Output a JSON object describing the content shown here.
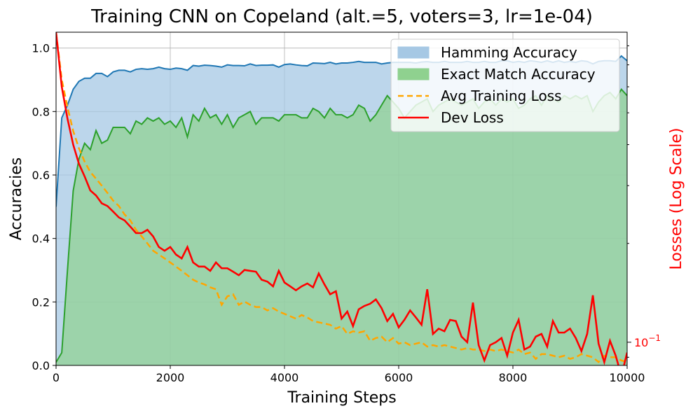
{
  "chart_data": {
    "type": "line",
    "title": "Training CNN on Copeland (alt.=5, voters=3, lr=1e-04)",
    "xlabel": "Training Steps",
    "ylabel": "Accuracies",
    "ylabel_right": "Losses (Log Scale)",
    "xlim": [
      0,
      10000
    ],
    "ylim": [
      0,
      1.05
    ],
    "ylim_right_log": [
      0.085,
      0.88
    ],
    "x_ticks": [
      0,
      2000,
      4000,
      6000,
      8000,
      10000
    ],
    "x_tick_labels": [
      "0",
      "2000",
      "4000",
      "6000",
      "8000",
      "10000"
    ],
    "y_ticks": [
      0.0,
      0.2,
      0.4,
      0.6,
      0.8,
      1.0
    ],
    "y_tick_labels": [
      "0.0",
      "0.2",
      "0.4",
      "0.6",
      "0.8",
      "1.0"
    ],
    "y_right_tick_labels": [
      {
        "base": "10",
        "exp": "−1",
        "value": 0.1
      }
    ],
    "grid": true,
    "legend_position": "top-right",
    "colors": {
      "hamming_line": "#1f77b4",
      "hamming_fill": "#a6c8e4",
      "exact_line": "#2ca02c",
      "exact_fill": "#8fd18f",
      "train_loss": "#ffa500",
      "dev_loss": "#ff0000",
      "right_axis": "#ff0000"
    },
    "x": [
      0,
      100,
      200,
      300,
      400,
      500,
      600,
      700,
      800,
      900,
      1000,
      1100,
      1200,
      1300,
      1400,
      1500,
      1600,
      1700,
      1800,
      1900,
      2000,
      2100,
      2200,
      2300,
      2400,
      2500,
      2600,
      2700,
      2800,
      2900,
      3000,
      3100,
      3200,
      3300,
      3400,
      3500,
      3600,
      3700,
      3800,
      3900,
      4000,
      4100,
      4200,
      4300,
      4400,
      4500,
      4600,
      4700,
      4800,
      4900,
      5000,
      5100,
      5200,
      5300,
      5400,
      5500,
      5600,
      5700,
      5800,
      5900,
      6000,
      6100,
      6200,
      6300,
      6400,
      6500,
      6600,
      6700,
      6800,
      6900,
      7000,
      7100,
      7200,
      7300,
      7400,
      7500,
      7600,
      7700,
      7800,
      7900,
      8000,
      8100,
      8200,
      8300,
      8400,
      8500,
      8600,
      8700,
      8800,
      8900,
      9000,
      9100,
      9200,
      9300,
      9400,
      9500,
      9600,
      9700,
      9800,
      9900,
      10000
    ],
    "series": [
      {
        "name": "Hamming Accuracy",
        "style": "area",
        "values": [
          0.5,
          0.78,
          0.82,
          0.87,
          0.895,
          0.905,
          0.905,
          0.92,
          0.92,
          0.91,
          0.925,
          0.93,
          0.93,
          0.925,
          0.933,
          0.935,
          0.933,
          0.935,
          0.94,
          0.935,
          0.933,
          0.937,
          0.935,
          0.93,
          0.945,
          0.943,
          0.946,
          0.945,
          0.943,
          0.94,
          0.947,
          0.945,
          0.945,
          0.944,
          0.95,
          0.945,
          0.946,
          0.946,
          0.947,
          0.94,
          0.948,
          0.95,
          0.947,
          0.945,
          0.944,
          0.953,
          0.952,
          0.951,
          0.955,
          0.95,
          0.953,
          0.953,
          0.955,
          0.958,
          0.955,
          0.955,
          0.955,
          0.95,
          0.953,
          0.955,
          0.955,
          0.955,
          0.955,
          0.953,
          0.956,
          0.957,
          0.955,
          0.955,
          0.958,
          0.955,
          0.955,
          0.955,
          0.958,
          0.955,
          0.955,
          0.958,
          0.955,
          0.955,
          0.96,
          0.96,
          0.955,
          0.958,
          0.955,
          0.96,
          0.958,
          0.955,
          0.96,
          0.955,
          0.96,
          0.955,
          0.958,
          0.955,
          0.96,
          0.958,
          0.95,
          0.958,
          0.96,
          0.96,
          0.958,
          0.975,
          0.96
        ]
      },
      {
        "name": "Exact Match Accuracy",
        "style": "area",
        "values": [
          0.01,
          0.04,
          0.3,
          0.55,
          0.65,
          0.7,
          0.68,
          0.74,
          0.7,
          0.71,
          0.75,
          0.75,
          0.75,
          0.73,
          0.77,
          0.76,
          0.78,
          0.77,
          0.78,
          0.76,
          0.77,
          0.75,
          0.78,
          0.72,
          0.79,
          0.77,
          0.81,
          0.78,
          0.79,
          0.76,
          0.79,
          0.75,
          0.78,
          0.79,
          0.8,
          0.76,
          0.78,
          0.78,
          0.78,
          0.77,
          0.79,
          0.79,
          0.79,
          0.78,
          0.78,
          0.81,
          0.8,
          0.78,
          0.81,
          0.79,
          0.79,
          0.78,
          0.79,
          0.82,
          0.81,
          0.77,
          0.79,
          0.82,
          0.85,
          0.83,
          0.81,
          0.78,
          0.8,
          0.82,
          0.83,
          0.84,
          0.8,
          0.82,
          0.83,
          0.84,
          0.83,
          0.82,
          0.83,
          0.84,
          0.81,
          0.83,
          0.84,
          0.82,
          0.84,
          0.83,
          0.84,
          0.81,
          0.82,
          0.84,
          0.85,
          0.82,
          0.85,
          0.84,
          0.83,
          0.85,
          0.84,
          0.85,
          0.84,
          0.85,
          0.8,
          0.83,
          0.85,
          0.86,
          0.84,
          0.87,
          0.85
        ]
      },
      {
        "name": "Avg Training Loss",
        "style": "dashed-line",
        "axis": "right",
        "values": [
          0.88,
          0.63,
          0.52,
          0.44,
          0.39,
          0.355,
          0.33,
          0.315,
          0.3,
          0.285,
          0.27,
          0.26,
          0.245,
          0.235,
          0.22,
          0.21,
          0.2,
          0.19,
          0.185,
          0.18,
          0.175,
          0.17,
          0.165,
          0.16,
          0.155,
          0.152,
          0.15,
          0.147,
          0.145,
          0.13,
          0.138,
          0.14,
          0.13,
          0.133,
          0.13,
          0.128,
          0.128,
          0.125,
          0.127,
          0.124,
          0.122,
          0.12,
          0.118,
          0.121,
          0.119,
          0.116,
          0.115,
          0.114,
          0.113,
          0.11,
          0.112,
          0.106,
          0.108,
          0.107,
          0.108,
          0.101,
          0.103,
          0.104,
          0.1,
          0.103,
          0.099,
          0.1,
          0.098,
          0.099,
          0.1,
          0.097,
          0.098,
          0.097,
          0.098,
          0.097,
          0.096,
          0.095,
          0.096,
          0.095,
          0.095,
          0.094,
          0.095,
          0.094,
          0.095,
          0.094,
          0.093,
          0.095,
          0.092,
          0.093,
          0.089,
          0.092,
          0.092,
          0.091,
          0.09,
          0.091,
          0.089,
          0.09,
          0.092,
          0.091,
          0.09,
          0.087,
          0.091,
          0.09,
          0.09,
          0.088,
          0.087
        ]
      },
      {
        "name": "Dev Loss",
        "style": "line",
        "axis": "right",
        "values": [
          0.88,
          0.6,
          0.48,
          0.4,
          0.35,
          0.32,
          0.29,
          0.28,
          0.265,
          0.26,
          0.25,
          0.24,
          0.235,
          0.225,
          0.215,
          0.215,
          0.22,
          0.21,
          0.195,
          0.19,
          0.195,
          0.185,
          0.18,
          0.195,
          0.175,
          0.17,
          0.17,
          0.165,
          0.175,
          0.168,
          0.168,
          0.164,
          0.16,
          0.166,
          0.165,
          0.164,
          0.155,
          0.153,
          0.148,
          0.165,
          0.152,
          0.148,
          0.144,
          0.148,
          0.151,
          0.147,
          0.162,
          0.15,
          0.14,
          0.143,
          0.118,
          0.124,
          0.112,
          0.126,
          0.129,
          0.131,
          0.135,
          0.127,
          0.116,
          0.122,
          0.111,
          0.117,
          0.125,
          0.119,
          0.113,
          0.145,
          0.106,
          0.11,
          0.108,
          0.117,
          0.116,
          0.104,
          0.1,
          0.132,
          0.098,
          0.088,
          0.098,
          0.1,
          0.103,
          0.091,
          0.107,
          0.117,
          0.095,
          0.097,
          0.104,
          0.106,
          0.097,
          0.116,
          0.107,
          0.107,
          0.11,
          0.103,
          0.094,
          0.106,
          0.139,
          0.099,
          0.087,
          0.101,
          0.091,
          0.079,
          0.093
        ]
      }
    ]
  }
}
